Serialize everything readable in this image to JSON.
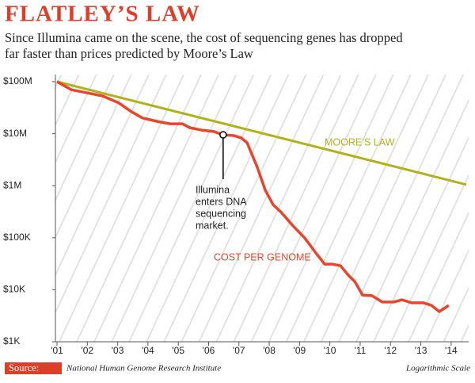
{
  "chart_data": {
    "type": "line",
    "title": "FLATLEY’S LAW",
    "subtitle": [
      "Since Illumina came on the scene, the cost of sequencing genes has dropped",
      "far faster than prices predicted by Moore’s Law"
    ],
    "yscale": "log",
    "xlim": [
      2001,
      2014.5
    ],
    "ylim": [
      1000,
      100000000
    ],
    "xticks": [
      {
        "value": 2001,
        "label": "'01"
      },
      {
        "value": 2002,
        "label": "'02"
      },
      {
        "value": 2003,
        "label": "'03"
      },
      {
        "value": 2004,
        "label": "'04"
      },
      {
        "value": 2005,
        "label": "'05"
      },
      {
        "value": 2006,
        "label": "'06"
      },
      {
        "value": 2007,
        "label": "'07"
      },
      {
        "value": 2008,
        "label": "'08"
      },
      {
        "value": 2009,
        "label": "'09"
      },
      {
        "value": 2010,
        "label": "'10"
      },
      {
        "value": 2011,
        "label": "'11"
      },
      {
        "value": 2012,
        "label": "'12"
      },
      {
        "value": 2013,
        "label": "'13"
      },
      {
        "value": 2014,
        "label": "'14"
      }
    ],
    "yticks": [
      {
        "value": 100000000,
        "label": "$100M"
      },
      {
        "value": 10000000,
        "label": "$10M"
      },
      {
        "value": 1000000,
        "label": "$1M"
      },
      {
        "value": 100000,
        "label": "$100K"
      },
      {
        "value": 10000,
        "label": "$10K"
      },
      {
        "value": 1000,
        "label": "$1K"
      }
    ],
    "series": [
      {
        "name": "COST PER GENOME",
        "color": "#e8452c",
        "x": [
          2001.0,
          2001.47,
          2001.99,
          2002.51,
          2003.04,
          2003.43,
          2003.82,
          2004.35,
          2004.73,
          2005.13,
          2005.39,
          2005.78,
          2006.17,
          2006.48,
          2006.82,
          2007.08,
          2007.27,
          2007.6,
          2007.87,
          2008.13,
          2008.39,
          2008.78,
          2009.17,
          2009.56,
          2009.83,
          2010.09,
          2010.35,
          2010.61,
          2010.82,
          2011.08,
          2011.39,
          2011.73,
          2012.1,
          2012.38,
          2012.7,
          2013.09,
          2013.35,
          2013.61,
          2013.92
        ],
        "values": [
          100000000,
          70000000,
          61000000,
          53000000,
          39000000,
          27000000,
          20000000,
          17000000,
          15500000,
          15500000,
          13000000,
          11700000,
          11000000,
          9500000,
          9200000,
          8300000,
          6700000,
          2300000,
          820000,
          430000,
          310000,
          170000,
          99000,
          49000,
          31000,
          31000,
          29000,
          19000,
          14400,
          7900,
          7700,
          5800,
          5800,
          6400,
          5600,
          5600,
          5000,
          3800,
          5000
        ]
      },
      {
        "name": "MOORE’S LAW",
        "color": "#b2b11c",
        "x": [
          2001,
          2014.5
        ],
        "values": [
          100000000,
          1050000
        ]
      }
    ],
    "annotation": [
      "Illumina",
      "enters DNA",
      "sequencing",
      "market."
    ],
    "source_label": "Source:",
    "source": "National Human Genome Research Institute",
    "note": "Logarithmic Scale"
  }
}
